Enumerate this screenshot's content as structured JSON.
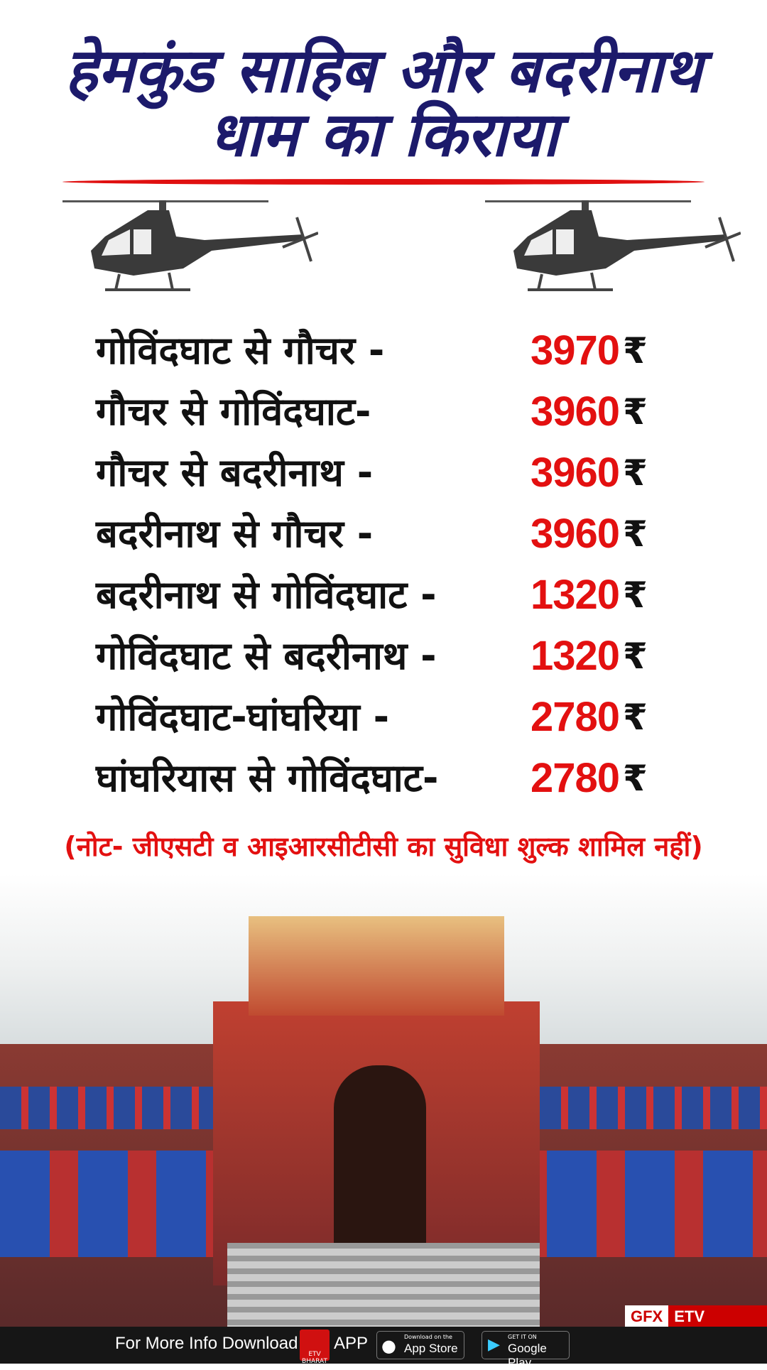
{
  "header": {
    "title_line1": "हेमकुंड साहिब और बदरीनाथ",
    "title_line2": "धाम का किराया"
  },
  "fares": [
    {
      "route": "गोविंदघाट से गौचर -",
      "price": "3970",
      "currency": "₹"
    },
    {
      "route": "गौचर से गोविंदघाट-",
      "price": "3960",
      "currency": "₹"
    },
    {
      "route": "गौचर से बदरीनाथ -",
      "price": "3960",
      "currency": "₹"
    },
    {
      "route": "बदरीनाथ से गौचर -",
      "price": "3960",
      "currency": "₹"
    },
    {
      "route": "बदरीनाथ से गोविंदघाट -",
      "price": "1320",
      "currency": "₹"
    },
    {
      "route": "गोविंदघाट से बदरीनाथ -",
      "price": "1320",
      "currency": "₹"
    },
    {
      "route": "गोविंदघाट-घांघरिया -",
      "price": "2780",
      "currency": "₹"
    },
    {
      "route": "घांघरियास से गोविंदघाट-",
      "price": "2780",
      "currency": "₹"
    }
  ],
  "note": "(नोट- जीएसटी व आइआरसीटीसी का सुविधा शुल्क शामिल नहीं)",
  "watermark": {
    "gfx": "GFX",
    "brand": "ETV BHARAT"
  },
  "footer": {
    "text": "For More Info Download",
    "app_logo": "ETV BHARAT",
    "app": "APP",
    "appstore_small": "Download on the",
    "appstore": "App Store",
    "play_small": "GET IT ON",
    "play": "Google Play"
  },
  "colors": {
    "title": "#1c1a6b",
    "price": "#e31010",
    "accent": "#e01010"
  }
}
